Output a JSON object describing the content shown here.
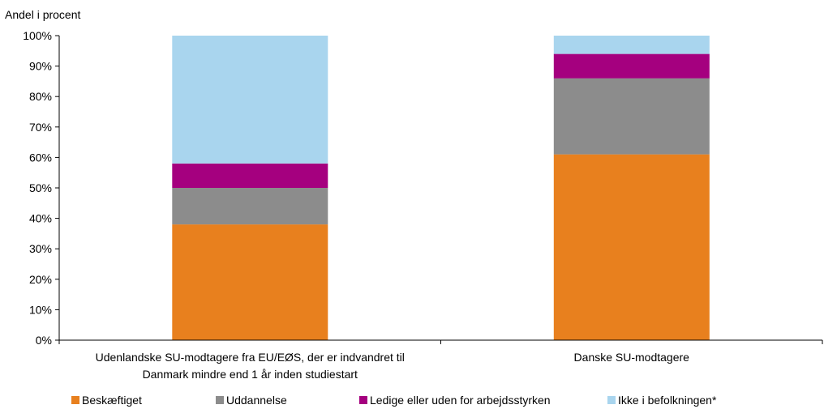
{
  "chart_data": {
    "type": "bar",
    "stacked": true,
    "unit_label": "Andel i procent",
    "categories": [
      [
        "Udenlandske SU-modtagere fra EU/EØS, der er indvandret til",
        "Danmark mindre end 1 år inden studiestart"
      ],
      [
        "Danske SU-modtagere"
      ]
    ],
    "series": [
      {
        "name": "Beskæftiget",
        "color": "#E8801E",
        "values": [
          38,
          61
        ]
      },
      {
        "name": "Uddannelse",
        "color": "#8C8C8C",
        "values": [
          12,
          25
        ]
      },
      {
        "name": "Ledige eller uden for arbejdsstyrken",
        "color": "#A5007F",
        "values": [
          8,
          8
        ]
      },
      {
        "name": "Ikke i befolkningen*",
        "color": "#A9D5EE",
        "values": [
          42,
          6
        ]
      }
    ],
    "ylim": [
      0,
      100
    ],
    "yticks": [
      0,
      10,
      20,
      30,
      40,
      50,
      60,
      70,
      80,
      90,
      100
    ],
    "ytick_suffix": "%",
    "legend_position": "bottom",
    "grid": false
  }
}
